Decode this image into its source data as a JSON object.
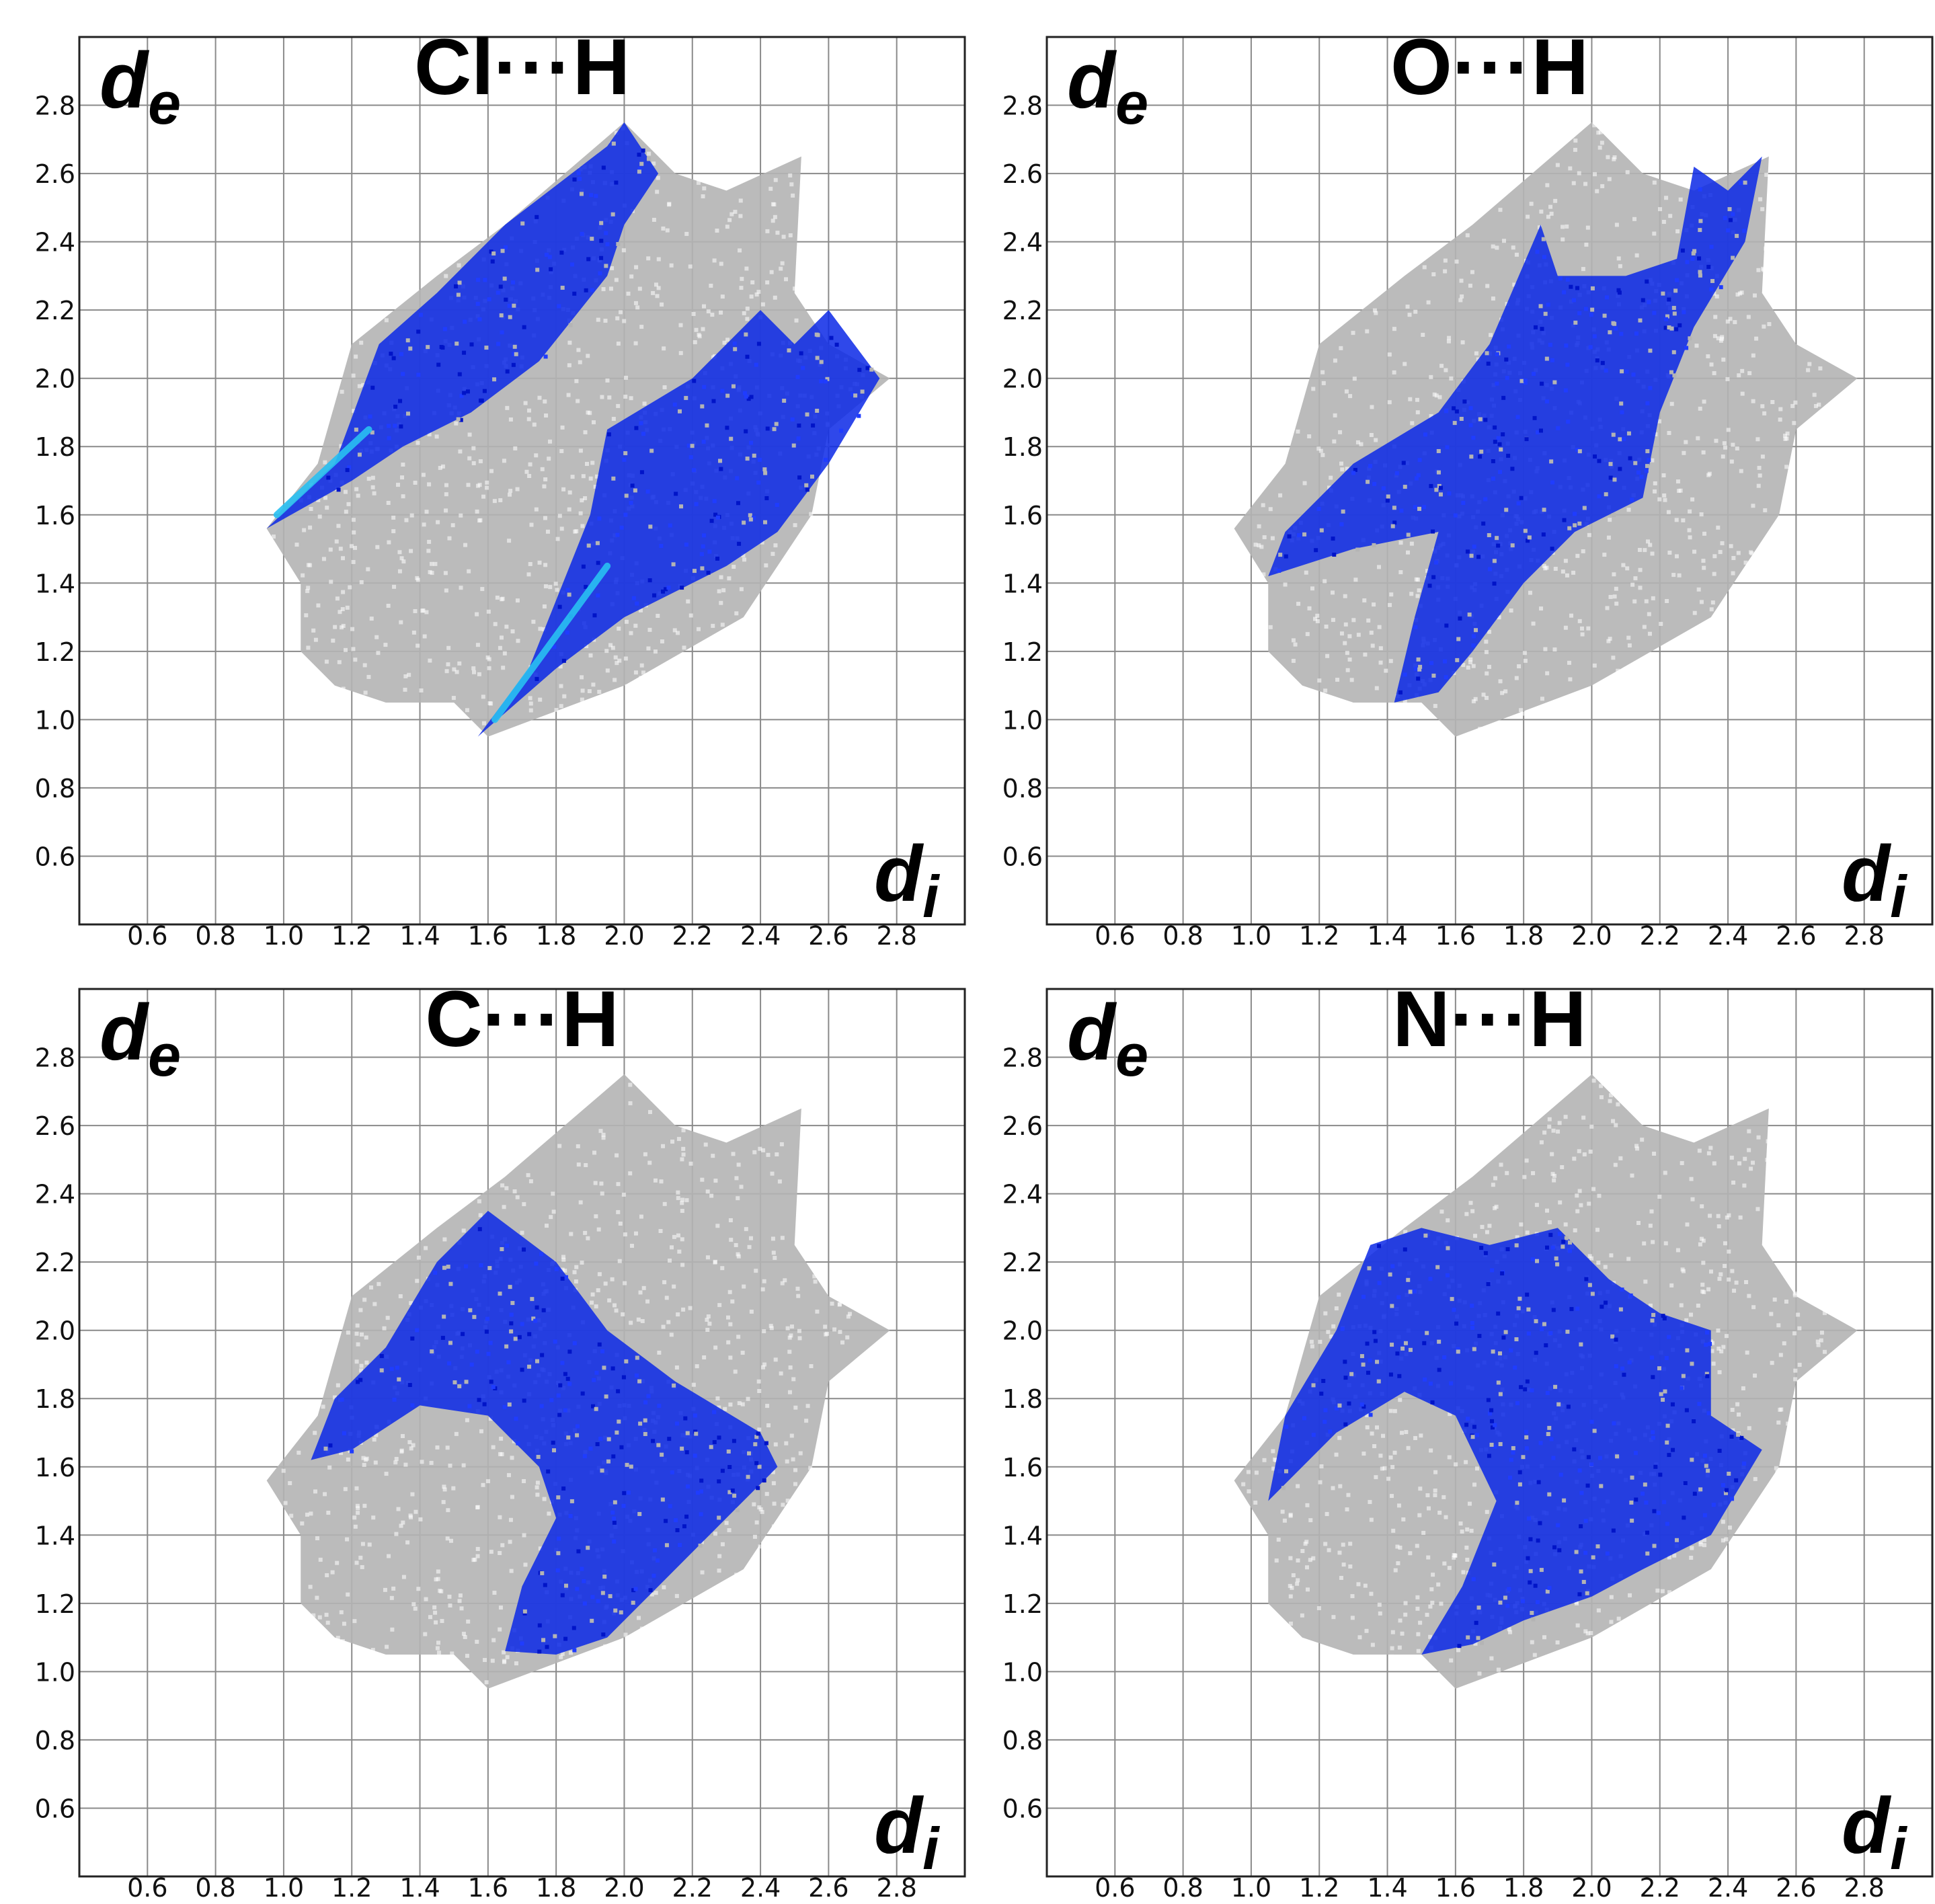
{
  "chart_data": [
    {
      "type": "scatter",
      "title": "Cl···H",
      "xlabel": "d",
      "xlabel_sub": "i",
      "ylabel": "d",
      "ylabel_sub": "e",
      "xlim": [
        0.4,
        3.0
      ],
      "ylim": [
        0.4,
        3.0
      ],
      "xticks": [
        "0.6",
        "0.8",
        "1.0",
        "1.2",
        "1.4",
        "1.6",
        "1.8",
        "2.0",
        "2.2",
        "2.4",
        "2.6",
        "2.8"
      ],
      "yticks": [
        "0.6",
        "0.8",
        "1.0",
        "1.2",
        "1.4",
        "1.6",
        "1.8",
        "2.0",
        "2.2",
        "2.4",
        "2.6",
        "2.8"
      ],
      "grid": true,
      "series": [
        {
          "role": "all-contacts-background",
          "color": "#b4b4b4",
          "outline": [
            [
              0.95,
              1.56
            ],
            [
              1.1,
              1.75
            ],
            [
              1.2,
              2.1
            ],
            [
              1.45,
              2.3
            ],
            [
              1.65,
              2.45
            ],
            [
              2.0,
              2.75
            ],
            [
              2.15,
              2.6
            ],
            [
              2.3,
              2.55
            ],
            [
              2.52,
              2.65
            ],
            [
              2.5,
              2.25
            ],
            [
              2.6,
              2.1
            ],
            [
              2.78,
              2.0
            ],
            [
              2.6,
              1.85
            ],
            [
              2.55,
              1.6
            ],
            [
              2.35,
              1.3
            ],
            [
              2.0,
              1.1
            ],
            [
              1.6,
              0.95
            ],
            [
              1.5,
              1.05
            ],
            [
              1.3,
              1.05
            ],
            [
              1.15,
              1.1
            ],
            [
              1.05,
              1.2
            ],
            [
              1.05,
              1.4
            ]
          ]
        },
        {
          "role": "highlighted-contacts",
          "color": "#0a28e6",
          "hotspot_color": "#29c0f2",
          "regions": [
            [
              [
                0.95,
                1.56
              ],
              [
                1.15,
                1.75
              ],
              [
                1.28,
                2.1
              ],
              [
                1.45,
                2.25
              ],
              [
                1.65,
                2.45
              ],
              [
                1.95,
                2.68
              ],
              [
                2.0,
                2.75
              ],
              [
                2.1,
                2.6
              ],
              [
                2.0,
                2.45
              ],
              [
                1.95,
                2.3
              ],
              [
                1.75,
                2.05
              ],
              [
                1.55,
                1.9
              ],
              [
                1.35,
                1.8
              ],
              [
                1.2,
                1.7
              ]
            ],
            [
              [
                1.57,
                0.95
              ],
              [
                1.72,
                1.15
              ],
              [
                1.9,
                1.6
              ],
              [
                1.95,
                1.85
              ],
              [
                2.2,
                2.0
              ],
              [
                2.4,
                2.2
              ],
              [
                2.5,
                2.1
              ],
              [
                2.6,
                2.2
              ],
              [
                2.75,
                2.0
              ],
              [
                2.6,
                1.75
              ],
              [
                2.45,
                1.55
              ],
              [
                2.3,
                1.45
              ],
              [
                2.0,
                1.3
              ],
              [
                1.8,
                1.15
              ]
            ]
          ],
          "hotspots": [
            [
              [
                0.98,
                1.6
              ],
              [
                1.25,
                1.85
              ]
            ],
            [
              [
                1.62,
                1.0
              ],
              [
                1.95,
                1.45
              ]
            ]
          ]
        }
      ]
    },
    {
      "type": "scatter",
      "title": "O···H",
      "xlabel": "d",
      "xlabel_sub": "i",
      "ylabel": "d",
      "ylabel_sub": "e",
      "xlim": [
        0.4,
        3.0
      ],
      "ylim": [
        0.4,
        3.0
      ],
      "xticks": [
        "0.6",
        "0.8",
        "1.0",
        "1.2",
        "1.4",
        "1.6",
        "1.8",
        "2.0",
        "2.2",
        "2.4",
        "2.6",
        "2.8"
      ],
      "yticks": [
        "0.6",
        "0.8",
        "1.0",
        "1.2",
        "1.4",
        "1.6",
        "1.8",
        "2.0",
        "2.2",
        "2.4",
        "2.6",
        "2.8"
      ],
      "grid": true,
      "series": [
        {
          "role": "all-contacts-background",
          "color": "#b4b4b4",
          "outline": [
            [
              0.95,
              1.56
            ],
            [
              1.1,
              1.75
            ],
            [
              1.2,
              2.1
            ],
            [
              1.45,
              2.3
            ],
            [
              1.65,
              2.45
            ],
            [
              2.0,
              2.75
            ],
            [
              2.15,
              2.6
            ],
            [
              2.3,
              2.55
            ],
            [
              2.52,
              2.65
            ],
            [
              2.5,
              2.25
            ],
            [
              2.6,
              2.1
            ],
            [
              2.78,
              2.0
            ],
            [
              2.6,
              1.85
            ],
            [
              2.55,
              1.6
            ],
            [
              2.35,
              1.3
            ],
            [
              2.0,
              1.1
            ],
            [
              1.6,
              0.95
            ],
            [
              1.5,
              1.05
            ],
            [
              1.3,
              1.05
            ],
            [
              1.15,
              1.1
            ],
            [
              1.05,
              1.2
            ],
            [
              1.05,
              1.4
            ]
          ]
        },
        {
          "role": "highlighted-contacts",
          "color": "#0a28e6",
          "hotspot_color": "#29c0f2",
          "regions": [
            [
              [
                1.05,
                1.42
              ],
              [
                1.1,
                1.55
              ],
              [
                1.3,
                1.75
              ],
              [
                1.55,
                1.9
              ],
              [
                1.7,
                2.1
              ],
              [
                1.85,
                2.45
              ],
              [
                1.9,
                2.3
              ],
              [
                2.1,
                2.3
              ],
              [
                2.25,
                2.35
              ],
              [
                2.3,
                2.62
              ],
              [
                2.4,
                2.55
              ],
              [
                2.5,
                2.65
              ],
              [
                2.45,
                2.4
              ],
              [
                2.3,
                2.15
              ],
              [
                2.2,
                1.9
              ],
              [
                2.15,
                1.65
              ],
              [
                1.95,
                1.55
              ],
              [
                1.8,
                1.4
              ],
              [
                1.65,
                1.2
              ],
              [
                1.55,
                1.08
              ],
              [
                1.42,
                1.05
              ],
              [
                1.48,
                1.3
              ],
              [
                1.55,
                1.55
              ],
              [
                1.3,
                1.5
              ]
            ]
          ],
          "hotspots": []
        }
      ]
    },
    {
      "type": "scatter",
      "title": "C···H",
      "xlabel": "d",
      "xlabel_sub": "i",
      "ylabel": "d",
      "ylabel_sub": "e",
      "xlim": [
        0.4,
        3.0
      ],
      "ylim": [
        0.4,
        3.0
      ],
      "xticks": [
        "0.6",
        "0.8",
        "1.0",
        "1.2",
        "1.4",
        "1.6",
        "1.8",
        "2.0",
        "2.2",
        "2.4",
        "2.6",
        "2.8"
      ],
      "yticks": [
        "0.6",
        "0.8",
        "1.0",
        "1.2",
        "1.4",
        "1.6",
        "1.8",
        "2.0",
        "2.2",
        "2.4",
        "2.6",
        "2.8"
      ],
      "grid": true,
      "series": [
        {
          "role": "all-contacts-background",
          "color": "#b4b4b4",
          "outline": [
            [
              0.95,
              1.56
            ],
            [
              1.1,
              1.75
            ],
            [
              1.2,
              2.1
            ],
            [
              1.45,
              2.3
            ],
            [
              1.65,
              2.45
            ],
            [
              2.0,
              2.75
            ],
            [
              2.15,
              2.6
            ],
            [
              2.3,
              2.55
            ],
            [
              2.52,
              2.65
            ],
            [
              2.5,
              2.25
            ],
            [
              2.6,
              2.1
            ],
            [
              2.78,
              2.0
            ],
            [
              2.6,
              1.85
            ],
            [
              2.55,
              1.6
            ],
            [
              2.35,
              1.3
            ],
            [
              2.0,
              1.1
            ],
            [
              1.6,
              0.95
            ],
            [
              1.5,
              1.05
            ],
            [
              1.3,
              1.05
            ],
            [
              1.15,
              1.1
            ],
            [
              1.05,
              1.2
            ],
            [
              1.05,
              1.4
            ]
          ]
        },
        {
          "role": "highlighted-contacts",
          "color": "#0a28e6",
          "hotspot_color": "#29c0f2",
          "regions": [
            [
              [
                1.08,
                1.62
              ],
              [
                1.15,
                1.8
              ],
              [
                1.3,
                1.95
              ],
              [
                1.45,
                2.2
              ],
              [
                1.6,
                2.35
              ],
              [
                1.8,
                2.2
              ],
              [
                1.95,
                2.0
              ],
              [
                2.15,
                1.85
              ],
              [
                2.4,
                1.7
              ],
              [
                2.45,
                1.6
              ],
              [
                2.3,
                1.45
              ],
              [
                2.1,
                1.25
              ],
              [
                1.95,
                1.1
              ],
              [
                1.8,
                1.05
              ],
              [
                1.65,
                1.06
              ],
              [
                1.7,
                1.25
              ],
              [
                1.8,
                1.45
              ],
              [
                1.75,
                1.6
              ],
              [
                1.6,
                1.75
              ],
              [
                1.4,
                1.78
              ],
              [
                1.2,
                1.65
              ]
            ]
          ],
          "hotspots": []
        }
      ]
    },
    {
      "type": "scatter",
      "title": "N···H",
      "xlabel": "d",
      "xlabel_sub": "i",
      "ylabel": "d",
      "ylabel_sub": "e",
      "xlim": [
        0.4,
        3.0
      ],
      "ylim": [
        0.4,
        3.0
      ],
      "xticks": [
        "0.6",
        "0.8",
        "1.0",
        "1.2",
        "1.4",
        "1.6",
        "1.8",
        "2.0",
        "2.2",
        "2.4",
        "2.6",
        "2.8"
      ],
      "yticks": [
        "0.6",
        "0.8",
        "1.0",
        "1.2",
        "1.4",
        "1.6",
        "1.8",
        "2.0",
        "2.2",
        "2.4",
        "2.6",
        "2.8"
      ],
      "grid": true,
      "series": [
        {
          "role": "all-contacts-background",
          "color": "#b4b4b4",
          "outline": [
            [
              0.95,
              1.56
            ],
            [
              1.1,
              1.75
            ],
            [
              1.2,
              2.1
            ],
            [
              1.45,
              2.3
            ],
            [
              1.65,
              2.45
            ],
            [
              2.0,
              2.75
            ],
            [
              2.15,
              2.6
            ],
            [
              2.3,
              2.55
            ],
            [
              2.52,
              2.65
            ],
            [
              2.5,
              2.25
            ],
            [
              2.6,
              2.1
            ],
            [
              2.78,
              2.0
            ],
            [
              2.6,
              1.85
            ],
            [
              2.55,
              1.6
            ],
            [
              2.35,
              1.3
            ],
            [
              2.0,
              1.1
            ],
            [
              1.6,
              0.95
            ],
            [
              1.5,
              1.05
            ],
            [
              1.3,
              1.05
            ],
            [
              1.15,
              1.1
            ],
            [
              1.05,
              1.2
            ],
            [
              1.05,
              1.4
            ]
          ]
        },
        {
          "role": "highlighted-contacts",
          "color": "#0a28e6",
          "hotspot_color": "#29c0f2",
          "regions": [
            [
              [
                1.05,
                1.5
              ],
              [
                1.1,
                1.75
              ],
              [
                1.25,
                2.0
              ],
              [
                1.35,
                2.25
              ],
              [
                1.5,
                2.3
              ],
              [
                1.7,
                2.25
              ],
              [
                1.9,
                2.3
              ],
              [
                2.05,
                2.15
              ],
              [
                2.2,
                2.05
              ],
              [
                2.35,
                2.0
              ],
              [
                2.35,
                1.75
              ],
              [
                2.5,
                1.65
              ],
              [
                2.35,
                1.4
              ],
              [
                2.15,
                1.3
              ],
              [
                2.0,
                1.22
              ],
              [
                1.8,
                1.15
              ],
              [
                1.65,
                1.08
              ],
              [
                1.5,
                1.05
              ],
              [
                1.62,
                1.25
              ],
              [
                1.72,
                1.5
              ],
              [
                1.6,
                1.75
              ],
              [
                1.45,
                1.82
              ],
              [
                1.25,
                1.7
              ],
              [
                1.1,
                1.55
              ]
            ]
          ],
          "hotspots": []
        }
      ]
    }
  ]
}
